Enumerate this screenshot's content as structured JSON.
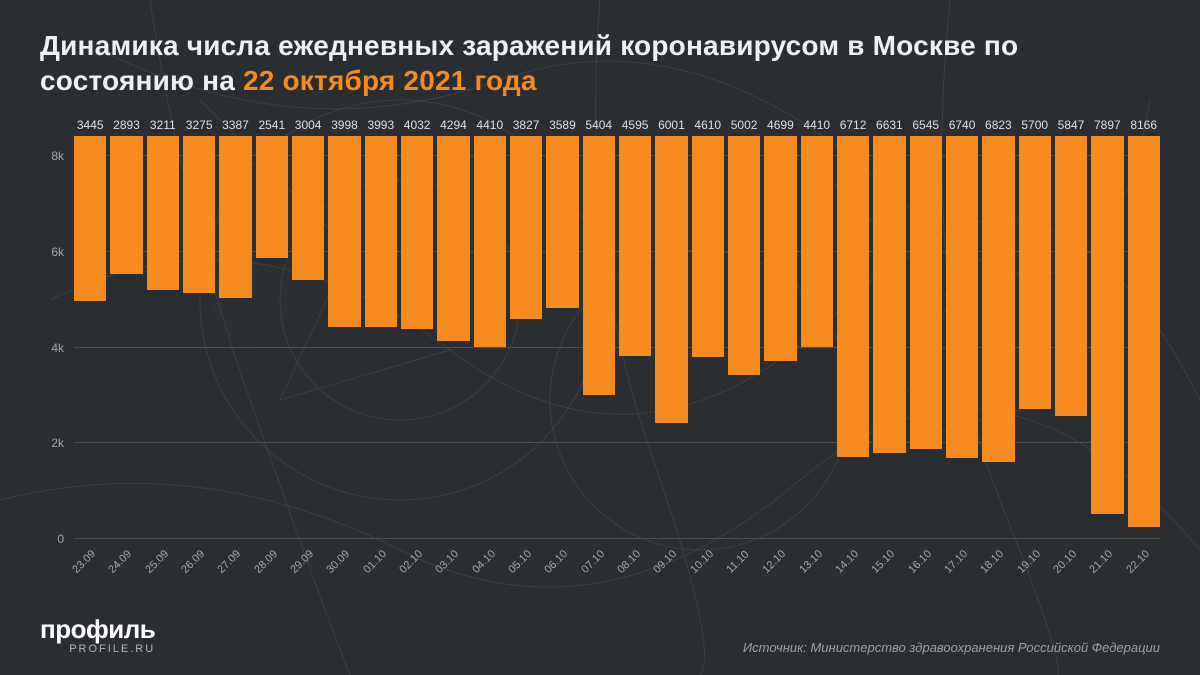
{
  "title_main": "Динамика числа ежедневных заражений коронавирусом в Москве по состоянию на ",
  "title_highlight": "22 октября 2021 года",
  "chart": {
    "type": "bar",
    "categories": [
      "23.09",
      "24.09",
      "25.09",
      "26.09",
      "27.09",
      "28.09",
      "29.09",
      "30.09",
      "01.10",
      "02.10",
      "03.10",
      "04.10",
      "05.10",
      "06.10",
      "07.10",
      "08.10",
      "09.10",
      "10.10",
      "11.10",
      "12.10",
      "13.10",
      "14.10",
      "15.10",
      "16.10",
      "17.10",
      "18.10",
      "19.10",
      "20.10",
      "21.10",
      "22.10"
    ],
    "values": [
      3445,
      2893,
      3211,
      3275,
      3387,
      2541,
      3004,
      3998,
      3993,
      4032,
      4294,
      4410,
      3827,
      3589,
      5404,
      4595,
      6001,
      4610,
      5002,
      4699,
      4410,
      6712,
      6631,
      6545,
      6740,
      6823,
      5700,
      5847,
      7897,
      8166
    ],
    "bar_color": "#f58a1f",
    "background_color": "#2a2d32",
    "grid_color": "#4a4d52",
    "text_color": "#e8e8e8",
    "axis_text_color": "#a8a8a8",
    "ylim": [
      0,
      8800
    ],
    "yticks": [
      0,
      2000,
      4000,
      6000,
      8000
    ],
    "ytick_labels": [
      "0",
      "2k",
      "4k",
      "6k",
      "8k"
    ],
    "value_label_fontsize": 12,
    "axis_label_fontsize": 11,
    "title_fontsize": 28
  },
  "logo": {
    "brand": "профиль",
    "domain": "PROFILE.RU"
  },
  "source": "Источник: Министерство здравоохранения Российской Федерации"
}
